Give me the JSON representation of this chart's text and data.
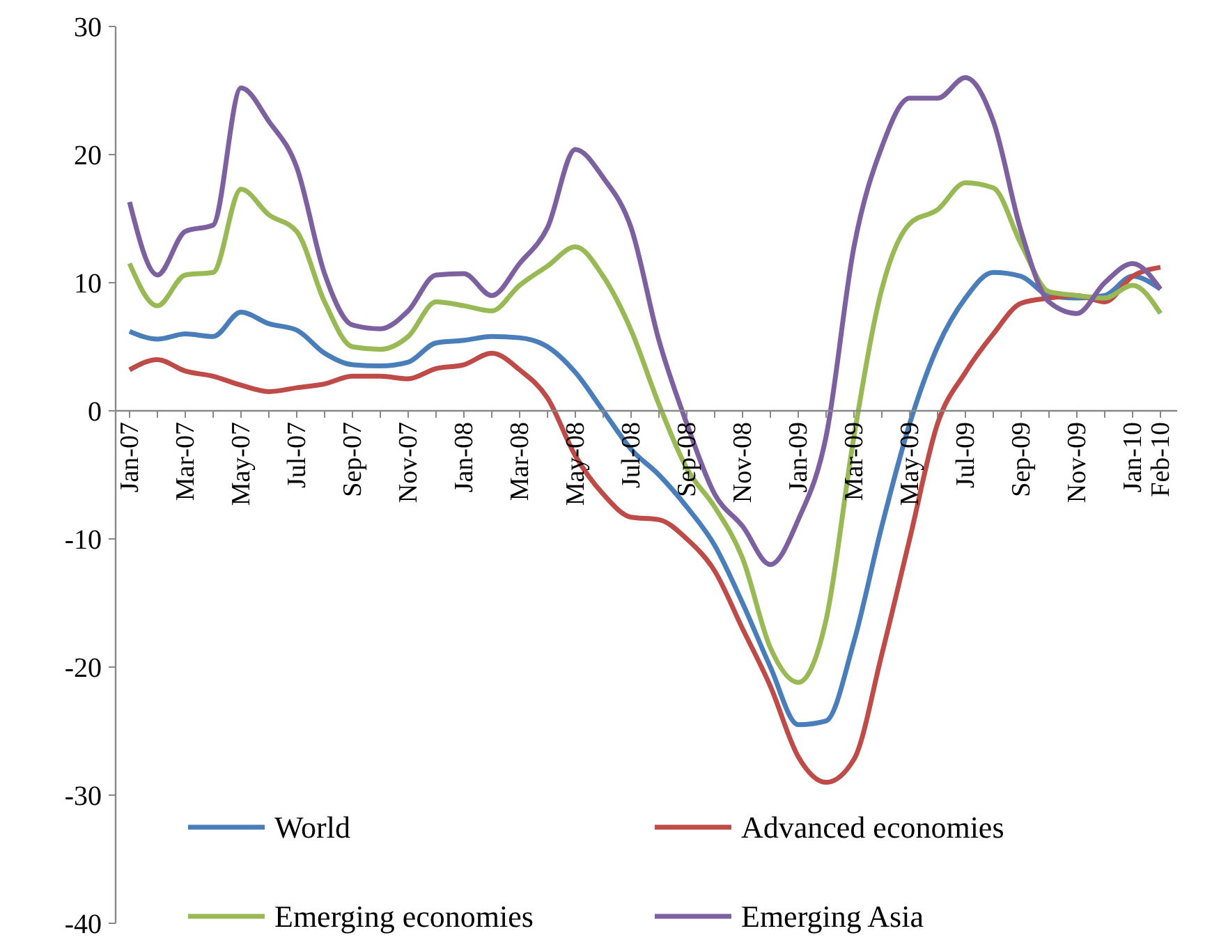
{
  "chart_data": {
    "type": "line",
    "categories": [
      "Jan-07",
      null,
      "Mar-07",
      null,
      "May-07",
      null,
      "Jul-07",
      null,
      "Sep-07",
      null,
      "Nov-07",
      null,
      "Jan-08",
      null,
      "Mar-08",
      null,
      "May-08",
      null,
      "Jul-08",
      null,
      "Sep-08",
      null,
      "Nov-08",
      null,
      "Jan-09",
      null,
      "Mar-09",
      null,
      "May-09",
      null,
      "Jul-09",
      null,
      "Sep-09",
      null,
      "Nov-09",
      null,
      "Jan-10",
      "Feb-10"
    ],
    "series": [
      {
        "name": "World",
        "color": "#4a7ebb",
        "values": [
          6.2,
          5.6,
          6.0,
          5.8,
          7.7,
          6.8,
          6.3,
          4.5,
          3.6,
          3.5,
          3.8,
          5.3,
          5.5,
          5.8,
          5.7,
          5.0,
          3.0,
          0,
          -3,
          -5,
          -7.5,
          -10.5,
          -15,
          -20,
          -24.5,
          -24.2,
          -18,
          -9,
          -1,
          5,
          8.8,
          10.8,
          10.5,
          9,
          8.8,
          9,
          10.5,
          9.5
        ]
      },
      {
        "name": "Advanced economies",
        "color": "#be4b48",
        "values": [
          3.2,
          4.0,
          3.1,
          2.7,
          2.0,
          1.5,
          1.8,
          2.1,
          2.7,
          2.7,
          2.5,
          3.3,
          3.6,
          4.5,
          3.2,
          1.0,
          -3.5,
          -6.5,
          -8.3,
          -8.5,
          -10,
          -12.5,
          -17,
          -21.5,
          -27,
          -29,
          -27.2,
          -19,
          -10,
          -1,
          3,
          6,
          8.4,
          8.8,
          9,
          8.5,
          10.5,
          11.2
        ]
      },
      {
        "name": "Emerging economies",
        "color": "#98b954",
        "values": [
          11.5,
          8.2,
          10.6,
          10.8,
          17.3,
          15.3,
          14,
          8.5,
          5,
          4.8,
          5.8,
          8.5,
          8.2,
          7.8,
          9.8,
          11.3,
          12.8,
          10.5,
          6.3,
          0.5,
          -4.5,
          -7.5,
          -11.5,
          -18.5,
          -21.2,
          -16.3,
          -2,
          9.5,
          14.6,
          15.7,
          17.8,
          17.4,
          13,
          9.3,
          9,
          8.8,
          9.8,
          7.6
        ]
      },
      {
        "name": "Emerging Asia",
        "color": "#7d60a0",
        "values": [
          16.3,
          10.6,
          14,
          14.5,
          25.2,
          22.6,
          19,
          10.7,
          6.7,
          6.4,
          7.8,
          10.6,
          10.7,
          9,
          11.5,
          14.3,
          20.4,
          18.2,
          14.3,
          5.5,
          -1,
          -6.5,
          -9,
          -12,
          -8.5,
          -2,
          12.8,
          20.6,
          24.4,
          24.4,
          26,
          22.6,
          14,
          8.5,
          7.6,
          10,
          11.5,
          9.5
        ]
      }
    ],
    "ylim": [
      -40,
      30
    ],
    "yticks": [
      -40,
      -30,
      -20,
      -10,
      0,
      10,
      20,
      30
    ],
    "grid": false,
    "legend": "bottom",
    "marker": "none",
    "line_style": "solid"
  }
}
